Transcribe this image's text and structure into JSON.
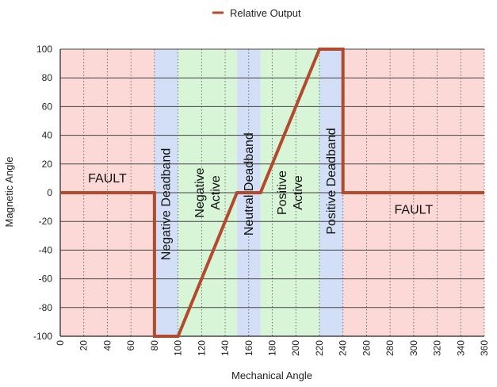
{
  "chart_data": {
    "type": "line",
    "legend": {
      "placement": "top-center",
      "entries": [
        "Relative Output"
      ]
    },
    "xlabel": "Mechanical Angle",
    "ylabel": "Magnetic Angle",
    "xlim": [
      0,
      360
    ],
    "ylim": [
      -100,
      100
    ],
    "x_ticks": [
      0,
      20,
      40,
      60,
      80,
      100,
      120,
      140,
      160,
      180,
      200,
      220,
      240,
      260,
      280,
      300,
      320,
      340,
      360
    ],
    "y_ticks": [
      -100,
      -80,
      -60,
      -40,
      -20,
      0,
      20,
      40,
      60,
      80,
      100
    ],
    "grid": {
      "vertical": "dotted",
      "horizontal": "solid"
    },
    "series": [
      {
        "name": "Relative Output",
        "color": "#b24a2e",
        "points": [
          [
            0,
            0
          ],
          [
            80,
            0
          ],
          [
            80,
            -100
          ],
          [
            100,
            -100
          ],
          [
            150,
            0
          ],
          [
            170,
            0
          ],
          [
            220,
            100
          ],
          [
            240,
            100
          ],
          [
            240,
            0
          ],
          [
            360,
            0
          ]
        ]
      }
    ],
    "regions": [
      {
        "x0": 0,
        "x1": 80,
        "color": "#fcd9d6",
        "label": [
          "FAULT"
        ],
        "orientation": "horizontal",
        "label_x": 40,
        "label_y": 10
      },
      {
        "x0": 80,
        "x1": 100,
        "color": "#d3def7",
        "label": [
          "Negative Deadband"
        ],
        "orientation": "vertical",
        "label_x": 90,
        "label_y": -8
      },
      {
        "x0": 100,
        "x1": 150,
        "color": "#d8f5d8",
        "label": [
          "Negative",
          "Active"
        ],
        "orientation": "vertical",
        "label_x": 125,
        "label_y": 0
      },
      {
        "x0": 150,
        "x1": 170,
        "color": "#d3def7",
        "label": [
          "Neutral Deadband"
        ],
        "orientation": "vertical",
        "label_x": 160,
        "label_y": 6
      },
      {
        "x0": 170,
        "x1": 220,
        "color": "#d8f5d8",
        "label": [
          "Positive",
          "Active"
        ],
        "orientation": "vertical",
        "label_x": 195,
        "label_y": 0
      },
      {
        "x0": 220,
        "x1": 240,
        "color": "#d3def7",
        "label": [
          "Positive Deadband"
        ],
        "orientation": "vertical",
        "label_x": 230,
        "label_y": 8
      },
      {
        "x0": 240,
        "x1": 360,
        "color": "#fcd9d6",
        "label": [
          "FAULT"
        ],
        "orientation": "horizontal",
        "label_x": 300,
        "label_y": -12
      }
    ]
  }
}
